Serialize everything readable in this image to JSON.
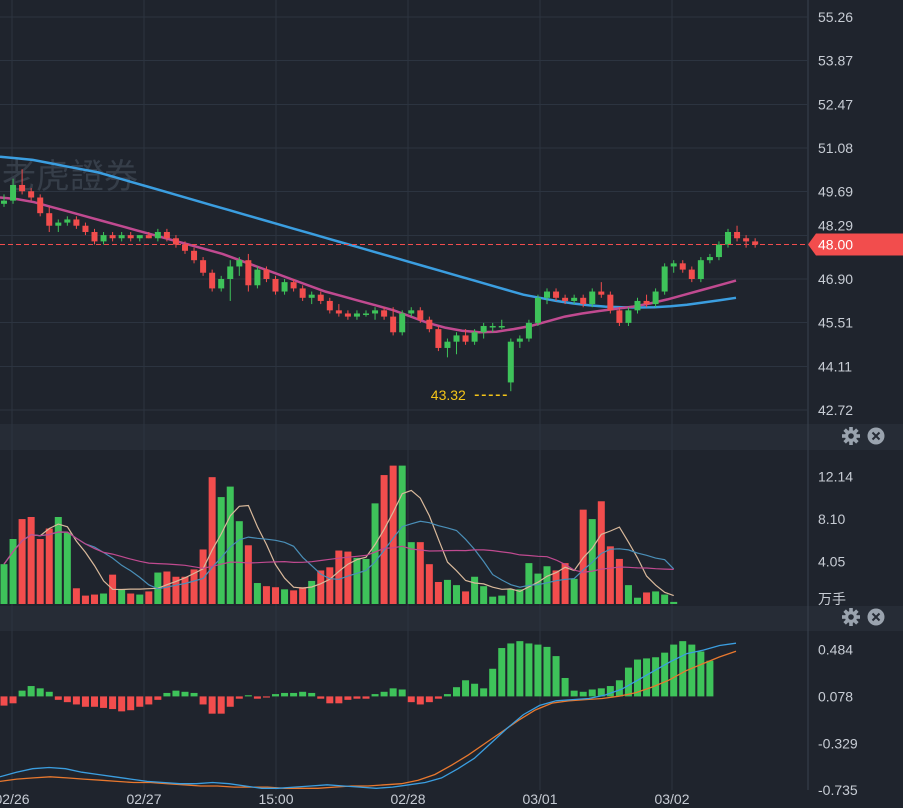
{
  "panels": {
    "volume_unit": "万手"
  },
  "icons": {
    "settings": "gear-icon",
    "close": "close-icon"
  },
  "colors": {
    "background": "#1f242d",
    "grid": "#2c3440",
    "up": "#3ec35a",
    "down": "#f24d4d",
    "ma_blue": "#3b9ee0",
    "ma_magenta": "#c04a90",
    "vol_ma_tan": "#d9b99b",
    "vol_ma_blue": "#4a8fb8",
    "vol_ma_magenta": "#c04a90",
    "macd_dif": "#3b9ee0",
    "macd_dea": "#e8782e",
    "min_label": "#f5c518",
    "price_tag": "#f24d4d"
  },
  "chart_data": [
    {
      "type": "candlestick",
      "name": "price",
      "y_ticks": [
        "55.26",
        "53.87",
        "52.47",
        "51.08",
        "49.69",
        "48.29",
        "46.90",
        "45.51",
        "44.11",
        "42.72"
      ],
      "ylim": [
        42.72,
        55.26
      ],
      "x_ticks": [
        "02/26",
        "02/27",
        "15:00",
        "02/28",
        "03/01",
        "03/02"
      ],
      "current_price": "48.00",
      "min_label": "43.32",
      "watermark": "老虎證券",
      "ohlc": [
        [
          49.3,
          49.6,
          49.2,
          49.4
        ],
        [
          49.4,
          50.1,
          49.3,
          49.9
        ],
        [
          49.9,
          50.4,
          49.6,
          49.7
        ],
        [
          49.7,
          49.8,
          49.4,
          49.5
        ],
        [
          49.5,
          49.6,
          48.9,
          49.0
        ],
        [
          49.0,
          49.2,
          48.4,
          48.6
        ],
        [
          48.6,
          48.8,
          48.4,
          48.7
        ],
        [
          48.7,
          48.9,
          48.6,
          48.8
        ],
        [
          48.8,
          48.9,
          48.5,
          48.6
        ],
        [
          48.6,
          48.7,
          48.3,
          48.4
        ],
        [
          48.4,
          48.5,
          48.0,
          48.1
        ],
        [
          48.1,
          48.4,
          48.0,
          48.3
        ],
        [
          48.3,
          48.4,
          48.1,
          48.2
        ],
        [
          48.2,
          48.4,
          48.1,
          48.3
        ],
        [
          48.3,
          48.4,
          48.1,
          48.2
        ],
        [
          48.2,
          48.3,
          48.1,
          48.3
        ],
        [
          48.3,
          48.4,
          48.2,
          48.2
        ],
        [
          48.2,
          48.5,
          48.1,
          48.4
        ],
        [
          48.4,
          48.5,
          48.1,
          48.2
        ],
        [
          48.2,
          48.3,
          47.9,
          48.0
        ],
        [
          48.0,
          48.1,
          47.7,
          47.8
        ],
        [
          47.8,
          47.9,
          47.4,
          47.5
        ],
        [
          47.5,
          47.6,
          47.0,
          47.1
        ],
        [
          47.1,
          47.2,
          46.5,
          46.6
        ],
        [
          46.6,
          47.0,
          46.5,
          46.9
        ],
        [
          46.9,
          47.5,
          46.2,
          47.3
        ],
        [
          47.3,
          47.6,
          47.0,
          47.5
        ],
        [
          47.5,
          47.7,
          46.5,
          46.7
        ],
        [
          46.7,
          47.3,
          46.6,
          47.2
        ],
        [
          47.2,
          47.3,
          46.8,
          46.9
        ],
        [
          46.9,
          47.0,
          46.4,
          46.5
        ],
        [
          46.5,
          46.9,
          46.4,
          46.8
        ],
        [
          46.8,
          46.9,
          46.5,
          46.6
        ],
        [
          46.6,
          46.7,
          46.2,
          46.3
        ],
        [
          46.3,
          46.5,
          46.1,
          46.4
        ],
        [
          46.4,
          46.5,
          46.1,
          46.2
        ],
        [
          46.2,
          46.3,
          45.8,
          45.9
        ],
        [
          45.9,
          46.1,
          45.7,
          45.8
        ],
        [
          45.8,
          45.9,
          45.6,
          45.7
        ],
        [
          45.7,
          45.9,
          45.6,
          45.8
        ],
        [
          45.8,
          45.9,
          45.7,
          45.8
        ],
        [
          45.8,
          46.0,
          45.6,
          45.9
        ],
        [
          45.9,
          46.0,
          45.6,
          45.7
        ],
        [
          45.7,
          46.0,
          45.1,
          45.2
        ],
        [
          45.2,
          45.9,
          45.1,
          45.8
        ],
        [
          45.8,
          46.0,
          45.7,
          45.9
        ],
        [
          45.9,
          46.0,
          45.5,
          45.6
        ],
        [
          45.6,
          45.7,
          45.2,
          45.3
        ],
        [
          45.3,
          45.4,
          44.6,
          44.7
        ],
        [
          44.7,
          45.0,
          44.4,
          44.9
        ],
        [
          44.9,
          45.2,
          44.5,
          45.1
        ],
        [
          45.1,
          45.3,
          44.8,
          44.9
        ],
        [
          44.9,
          45.3,
          44.8,
          45.2
        ],
        [
          45.2,
          45.5,
          45.0,
          45.4
        ],
        [
          45.4,
          45.5,
          45.2,
          45.4
        ],
        [
          45.4,
          45.6,
          45.3,
          45.4
        ],
        [
          43.6,
          45.0,
          43.32,
          44.9
        ],
        [
          44.9,
          45.1,
          44.7,
          45.0
        ],
        [
          45.0,
          45.6,
          44.9,
          45.5
        ],
        [
          45.5,
          46.4,
          45.4,
          46.3
        ],
        [
          46.3,
          46.6,
          46.1,
          46.5
        ],
        [
          46.5,
          46.6,
          46.2,
          46.3
        ],
        [
          46.3,
          46.4,
          46.1,
          46.2
        ],
        [
          46.2,
          46.4,
          46.1,
          46.3
        ],
        [
          46.3,
          46.4,
          46.0,
          46.1
        ],
        [
          46.1,
          46.6,
          46.0,
          46.5
        ],
        [
          46.5,
          46.8,
          46.3,
          46.4
        ],
        [
          46.4,
          46.5,
          45.8,
          45.9
        ],
        [
          45.9,
          46.0,
          45.4,
          45.5
        ],
        [
          45.5,
          46.0,
          45.4,
          45.9
        ],
        [
          45.9,
          46.3,
          45.8,
          46.2
        ],
        [
          46.2,
          46.4,
          46.0,
          46.1
        ],
        [
          46.1,
          46.6,
          46.0,
          46.5
        ],
        [
          46.5,
          47.4,
          46.4,
          47.3
        ],
        [
          47.3,
          47.5,
          47.1,
          47.4
        ],
        [
          47.4,
          47.5,
          47.1,
          47.2
        ],
        [
          47.2,
          47.3,
          46.8,
          46.9
        ],
        [
          46.9,
          47.6,
          46.8,
          47.5
        ],
        [
          47.5,
          47.7,
          47.4,
          47.6
        ],
        [
          47.6,
          48.1,
          47.5,
          48.0
        ],
        [
          48.0,
          48.5,
          47.9,
          48.4
        ],
        [
          48.4,
          48.6,
          48.1,
          48.2
        ],
        [
          48.2,
          48.3,
          47.9,
          48.1
        ],
        [
          48.1,
          48.2,
          47.9,
          48.0
        ]
      ],
      "ma_blue": [
        50.8,
        50.75,
        50.7,
        50.6,
        50.5,
        50.4,
        50.3,
        50.15,
        50.0,
        49.85,
        49.7,
        49.55,
        49.4,
        49.25,
        49.1,
        48.95,
        48.8,
        48.65,
        48.5,
        48.35,
        48.2,
        48.05,
        47.9,
        47.75,
        47.6,
        47.45,
        47.3,
        47.15,
        47.0,
        46.85,
        46.7,
        46.55,
        46.4,
        46.3,
        46.2,
        46.12,
        46.06,
        46.02,
        46.0,
        45.99,
        46.0,
        46.03,
        46.08,
        46.15,
        46.22,
        46.3
      ],
      "ma_magenta": [
        49.5,
        49.45,
        49.35,
        49.2,
        49.05,
        48.9,
        48.75,
        48.6,
        48.45,
        48.3,
        48.15,
        48.0,
        47.85,
        47.7,
        47.5,
        47.3,
        47.1,
        46.9,
        46.7,
        46.5,
        46.35,
        46.2,
        46.05,
        45.9,
        45.7,
        45.5,
        45.35,
        45.25,
        45.2,
        45.22,
        45.3,
        45.4,
        45.55,
        45.7,
        45.8,
        45.88,
        45.95,
        46.02,
        46.12,
        46.25,
        46.4,
        46.55,
        46.7,
        46.85
      ]
    },
    {
      "type": "bar",
      "name": "volume",
      "y_ticks": [
        "12.14",
        "8.10",
        "4.05"
      ],
      "ylim": [
        0,
        14.5
      ],
      "unit": "万手",
      "values": [
        3.8,
        6.2,
        8.1,
        8.3,
        6.2,
        7.2,
        8.3,
        6.8,
        1.5,
        0.8,
        0.9,
        1.0,
        2.8,
        1.4,
        1.0,
        0.9,
        1.2,
        3.0,
        3.1,
        2.6,
        2.6,
        3.3,
        5.2,
        12.1,
        10.2,
        11.2,
        7.9,
        5.6,
        2.0,
        1.7,
        1.6,
        1.4,
        1.3,
        1.6,
        2.2,
        3.2,
        3.5,
        5.1,
        5.0,
        4.4,
        4.3,
        9.6,
        12.3,
        13.2,
        13.2,
        5.9,
        5.9,
        3.8,
        2.1,
        2.3,
        1.8,
        1.2,
        2.6,
        1.7,
        0.7,
        0.8,
        1.4,
        1.4,
        3.9,
        2.9,
        3.6,
        3.2,
        3.9,
        2.4,
        9.0,
        8.1,
        9.8,
        5.5,
        4.3,
        1.8,
        0.6,
        1.1,
        1.2,
        0.9,
        0.2
      ]
    },
    {
      "type": "bar",
      "name": "macd",
      "y_ticks": [
        "0.484",
        "0.078",
        "-0.329",
        "-0.735"
      ],
      "ylim": [
        -0.735,
        0.62
      ],
      "histogram": [
        -0.08,
        -0.06,
        0.05,
        0.09,
        0.07,
        0.04,
        -0.03,
        -0.05,
        -0.07,
        -0.09,
        -0.09,
        -0.1,
        -0.11,
        -0.13,
        -0.12,
        -0.09,
        -0.07,
        -0.03,
        0.03,
        0.05,
        0.04,
        0.03,
        -0.07,
        -0.15,
        -0.15,
        -0.09,
        -0.02,
        0.01,
        -0.02,
        -0.01,
        0.02,
        0.03,
        0.03,
        0.04,
        0.03,
        -0.02,
        -0.06,
        -0.06,
        -0.03,
        -0.02,
        -0.02,
        0.02,
        0.04,
        0.07,
        0.06,
        -0.05,
        -0.07,
        -0.05,
        -0.02,
        0.02,
        0.08,
        0.14,
        0.11,
        0.07,
        0.24,
        0.42,
        0.46,
        0.48,
        0.46,
        0.45,
        0.43,
        0.35,
        0.16,
        0.05,
        0.04,
        0.06,
        0.07,
        0.09,
        0.14,
        0.25,
        0.32,
        0.33,
        0.34,
        0.38,
        0.45,
        0.48,
        0.45,
        0.39,
        0.31
      ],
      "dif": [
        -0.62,
        -0.58,
        -0.55,
        -0.54,
        -0.55,
        -0.58,
        -0.6,
        -0.62,
        -0.64,
        -0.66,
        -0.67,
        -0.68,
        -0.68,
        -0.67,
        -0.68,
        -0.7,
        -0.72,
        -0.72,
        -0.71,
        -0.7,
        -0.69,
        -0.7,
        -0.71,
        -0.72,
        -0.71,
        -0.69,
        -0.67,
        -0.63,
        -0.55,
        -0.46,
        -0.33,
        -0.2,
        -0.08,
        0.0,
        0.04,
        0.05,
        0.06,
        0.09,
        0.14,
        0.22,
        0.3,
        0.38,
        0.45,
        0.48,
        0.52,
        0.54
      ],
      "dea": [
        -0.66,
        -0.64,
        -0.63,
        -0.62,
        -0.63,
        -0.64,
        -0.65,
        -0.66,
        -0.67,
        -0.67,
        -0.68,
        -0.69,
        -0.7,
        -0.7,
        -0.71,
        -0.71,
        -0.71,
        -0.72,
        -0.72,
        -0.72,
        -0.71,
        -0.7,
        -0.7,
        -0.69,
        -0.68,
        -0.65,
        -0.6,
        -0.52,
        -0.43,
        -0.33,
        -0.23,
        -0.13,
        -0.04,
        0.02,
        0.04,
        0.05,
        0.06,
        0.08,
        0.11,
        0.16,
        0.22,
        0.3,
        0.36,
        0.42,
        0.47
      ]
    }
  ]
}
